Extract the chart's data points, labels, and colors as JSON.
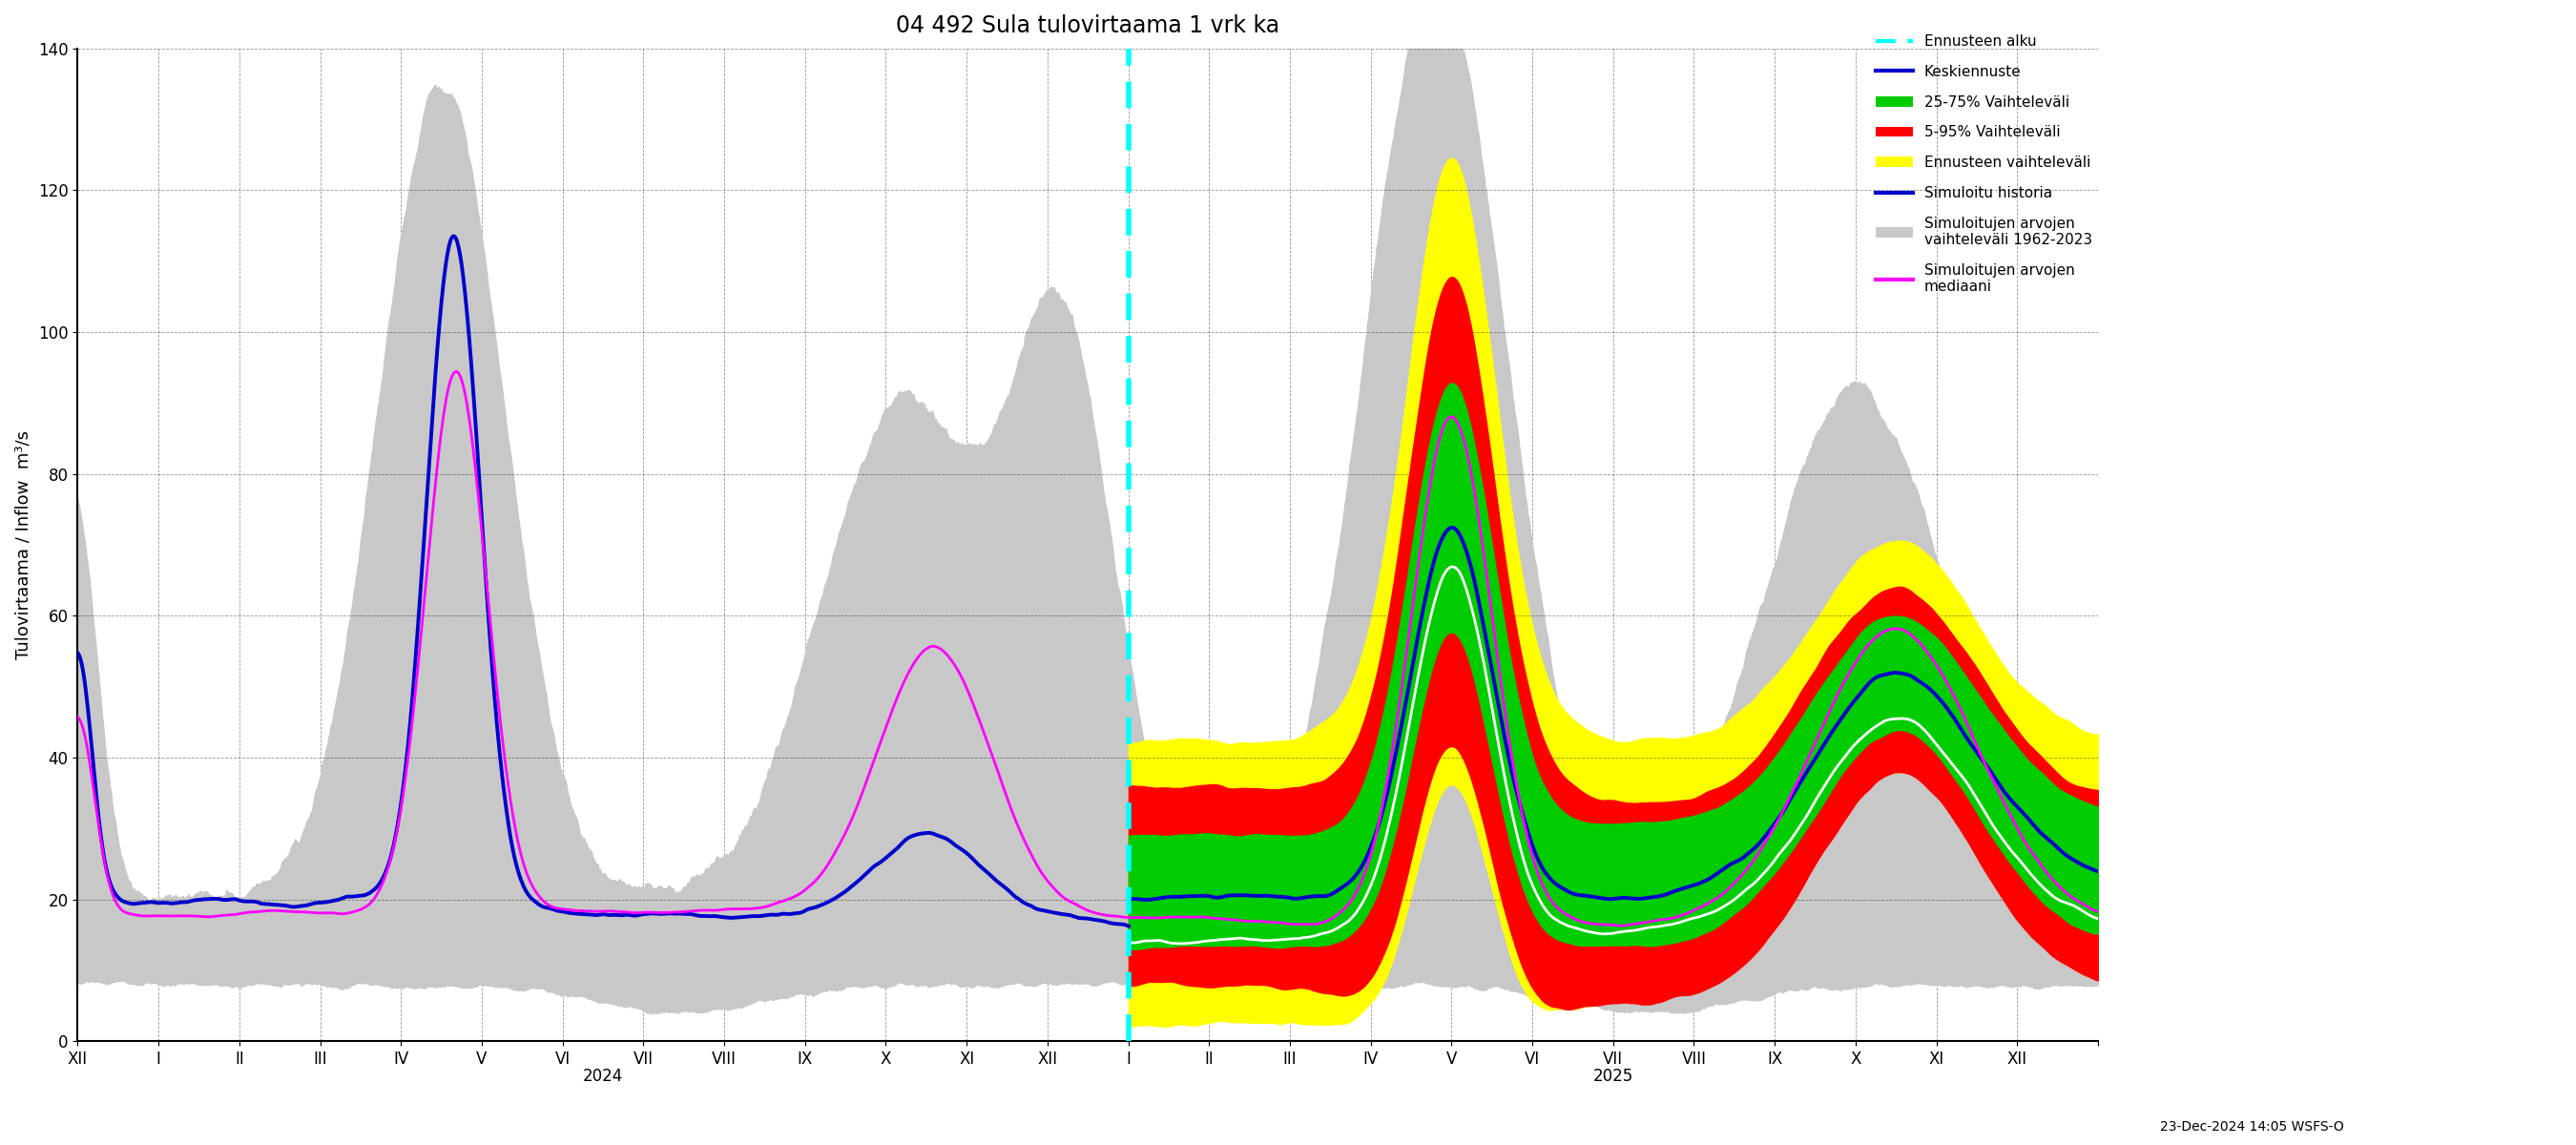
{
  "title": "04 492 Sula tulovirtaama 1 vrk ka",
  "ylabel": "Tulovirtaama / Inflow  m³/s",
  "ylim": [
    0,
    140
  ],
  "yticks": [
    0,
    20,
    40,
    60,
    80,
    100,
    120,
    140
  ],
  "footnote": "23-Dec-2024 14:05 WSFS-O",
  "background_color": "#ffffff",
  "forecast_start": 13.0,
  "total_months": 25,
  "legend_labels": [
    "Ennusteen alku",
    "Keskiennuste",
    "25-75% Vaihteleväli",
    "5-95% Vaihteleväli",
    "Ennusteen vaihteleväli",
    "Simuloitu historia",
    "Simuloitujen arvojen\nvaihteleväli 1962-2023",
    "Simuloitujen arvojen\nmediaani"
  ],
  "x_tick_positions": [
    0,
    1,
    2,
    3,
    4,
    5,
    6,
    7,
    8,
    9,
    10,
    11,
    12,
    13,
    14,
    15,
    16,
    17,
    18,
    19,
    20,
    21,
    22,
    23,
    24,
    25
  ],
  "x_month_labels": [
    "XII",
    "I",
    "II",
    "III",
    "IV",
    "V",
    "VI",
    "VII",
    "VIII",
    "IX",
    "X",
    "XI",
    "XII",
    "I",
    "II",
    "III",
    "IV",
    "V",
    "VI",
    "VII",
    "VIII",
    "IX",
    "X",
    "XI",
    "XII",
    ""
  ],
  "year2024_x": 6.5,
  "year2025_x": 19.0,
  "color_gray": "#c8c8c8",
  "color_yellow": "#ffff00",
  "color_red": "#ff0000",
  "color_green": "#00cc00",
  "color_blue": "#0000cc",
  "color_cyan": "#00ffff",
  "color_magenta": "#ff00ff",
  "color_white": "#ffffff"
}
